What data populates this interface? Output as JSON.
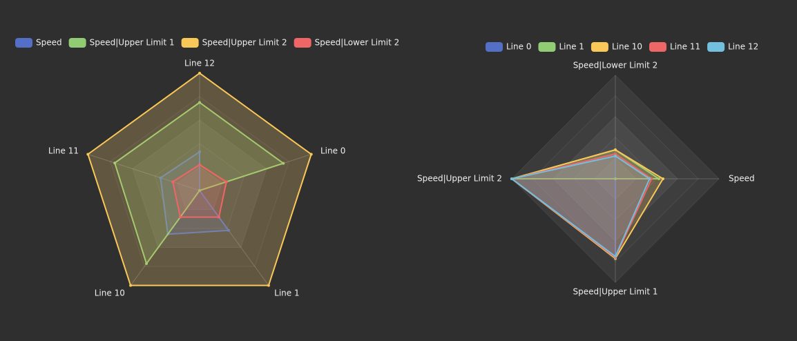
{
  "chart_data": [
    {
      "type": "radar",
      "indicators": [
        "Line 12",
        "Line 11",
        "Line 10",
        "Line 1",
        "Line 0"
      ],
      "rlim": [
        0,
        100
      ],
      "series": [
        {
          "name": "Speed",
          "color": "#5470c6",
          "values": [
            33,
            35,
            46,
            42,
            0
          ]
        },
        {
          "name": "Speed|Upper Limit 1",
          "color": "#91cc75",
          "values": [
            75,
            76,
            77,
            0,
            75
          ]
        },
        {
          "name": "Speed|Upper Limit 2",
          "color": "#fac858",
          "values": [
            100,
            100,
            100,
            100,
            100
          ]
        },
        {
          "name": "Speed|Lower Limit 2",
          "color": "#ee6666",
          "values": [
            22,
            24,
            28,
            28,
            24
          ]
        }
      ]
    },
    {
      "type": "radar",
      "indicators": [
        "Speed|Lower Limit 2",
        "Speed|Upper Limit 2",
        "Speed|Upper Limit 1",
        "Speed"
      ],
      "rlim": [
        0,
        100
      ],
      "series": [
        {
          "name": "Line 0",
          "color": "#5470c6",
          "values": [
            24,
            100,
            75,
            0
          ]
        },
        {
          "name": "Line 1",
          "color": "#91cc75",
          "values": [
            28,
            100,
            0,
            42
          ]
        },
        {
          "name": "Line 10",
          "color": "#fac858",
          "values": [
            28,
            100,
            77,
            46
          ]
        },
        {
          "name": "Line 11",
          "color": "#ee6666",
          "values": [
            24,
            100,
            76,
            35
          ]
        },
        {
          "name": "Line 12",
          "color": "#73c0de",
          "values": [
            22,
            100,
            75,
            33
          ]
        }
      ]
    }
  ]
}
